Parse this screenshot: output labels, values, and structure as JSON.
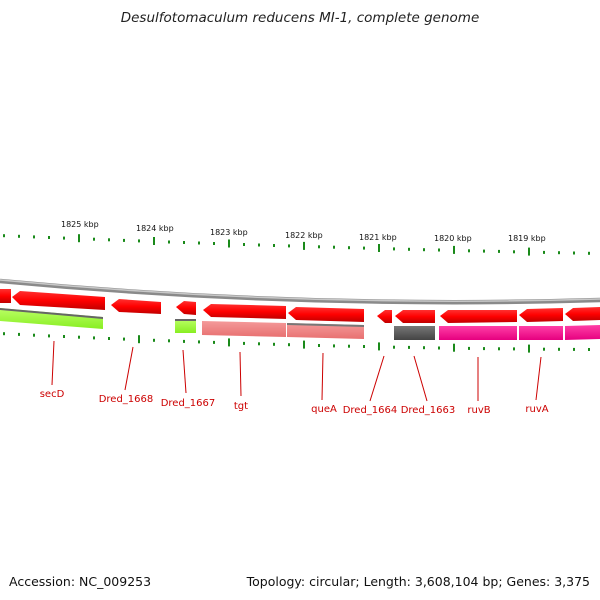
{
  "title": "Desulfotomaculum reducens MI-1, complete genome",
  "scale_labels": [
    "1825 kbp",
    "1824 kbp",
    "1823 kbp",
    "1822 kbp",
    "1821 kbp",
    "1820 kbp",
    "1819 kbp"
  ],
  "genes": [
    {
      "label": "secD",
      "color": "#ff0000"
    },
    {
      "label": "Dred_1668",
      "color": "#ff0000"
    },
    {
      "label": "Dred_1667",
      "color": "#ff0000"
    },
    {
      "label": "tgt",
      "color": "#ff0000"
    },
    {
      "label": "queA",
      "color": "#ff0000"
    },
    {
      "label": "Dred_1664",
      "color": "#ff0000"
    },
    {
      "label": "Dred_1663",
      "color": "#ff0000"
    },
    {
      "label": "ruvB",
      "color": "#ff0000"
    },
    {
      "label": "ruvA",
      "color": "#ff0000"
    }
  ],
  "cog_colors": {
    "lime": "#99ff33",
    "salmon": "#f08080",
    "gray": "#555555",
    "magenta": "#ff1493"
  },
  "footer": {
    "accession": "Accession: NC_009253",
    "summary": "Topology: circular; Length: 3,608,104 bp; Genes: 3,375"
  }
}
